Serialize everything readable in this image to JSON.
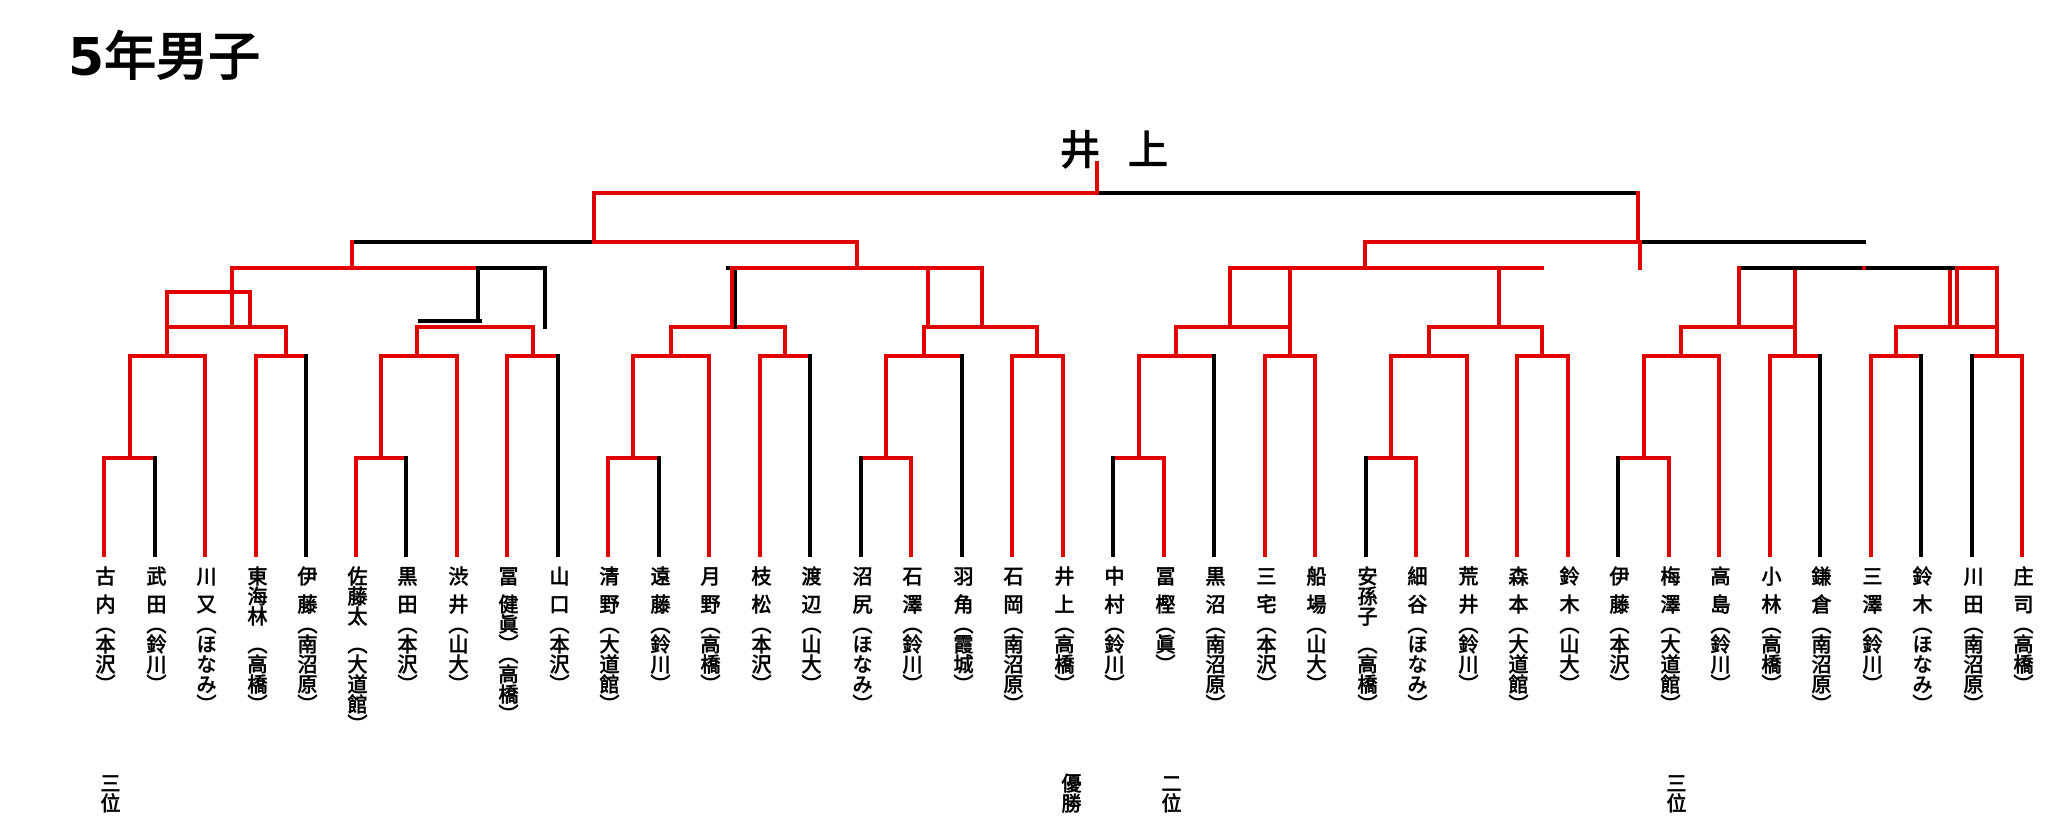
{
  "title": "5年男子",
  "champion": "井上",
  "colors": {
    "winner_path": "#e00000",
    "bracket_line": "#000000"
  },
  "players": [
    {
      "name": "古",
      "club": "内（本沢）"
    },
    {
      "name": "武",
      "club": "田（鈴川）"
    },
    {
      "name": "川",
      "club": "又（ほなみ）"
    },
    {
      "name": "東海林",
      "club": "（高橋）"
    },
    {
      "name": "伊",
      "club": "藤（南沼原）"
    },
    {
      "name": "佐藤太",
      "club": "（大道館）"
    },
    {
      "name": "黒",
      "club": "田（本沢）"
    },
    {
      "name": "渋",
      "club": "井（山大）"
    },
    {
      "name": "冨",
      "club": "健眞）（高橋）"
    },
    {
      "name": "山",
      "club": "口（本沢）"
    },
    {
      "name": "清",
      "club": "野（大道館）"
    },
    {
      "name": "遠",
      "club": "藤（鈴川）"
    },
    {
      "name": "月",
      "club": "野（高橋）"
    },
    {
      "name": "枝",
      "club": "松（本沢）"
    },
    {
      "name": "渡",
      "club": "辺（山大）"
    },
    {
      "name": "沼",
      "club": "尻（ほなみ）"
    },
    {
      "name": "石",
      "club": "澤（鈴川）"
    },
    {
      "name": "羽",
      "club": "角（霞城）"
    },
    {
      "name": "石",
      "club": "岡（南沼原）"
    },
    {
      "name": "井",
      "club": "上（高橋）"
    },
    {
      "name": "中",
      "club": "村（鈴川）"
    },
    {
      "name": "冨",
      "club": "樫（眞）"
    },
    {
      "name": "黒",
      "club": "沼（南沼原）"
    },
    {
      "name": "三",
      "club": "宅（本沢）"
    },
    {
      "name": "船",
      "club": "場（山大）"
    },
    {
      "name": "安孫子",
      "club": "（高橋）"
    },
    {
      "name": "細",
      "club": "谷（ほなみ）"
    },
    {
      "name": "荒",
      "club": "井（鈴川）"
    },
    {
      "name": "森",
      "club": "本（大道館）"
    },
    {
      "name": "鈴",
      "club": "木（山大）"
    },
    {
      "name": "伊",
      "club": "藤（本沢）"
    },
    {
      "name": "梅",
      "club": "澤（大道館）"
    },
    {
      "name": "高",
      "club": "島（鈴川）"
    },
    {
      "name": "小",
      "club": "林（高橋）"
    },
    {
      "name": "鎌",
      "club": "倉（南沼原）"
    },
    {
      "name": "三",
      "club": "澤（鈴川）"
    },
    {
      "name": "鈴",
      "club": "木（ほなみ）"
    },
    {
      "name": "川",
      "club": "田（南沼原）"
    },
    {
      "name": "庄",
      "club": "司（高橋）"
    }
  ],
  "placings": {
    "third_a": "三位",
    "winner": "優勝",
    "runner_up": "二位",
    "third_b": "三位"
  }
}
